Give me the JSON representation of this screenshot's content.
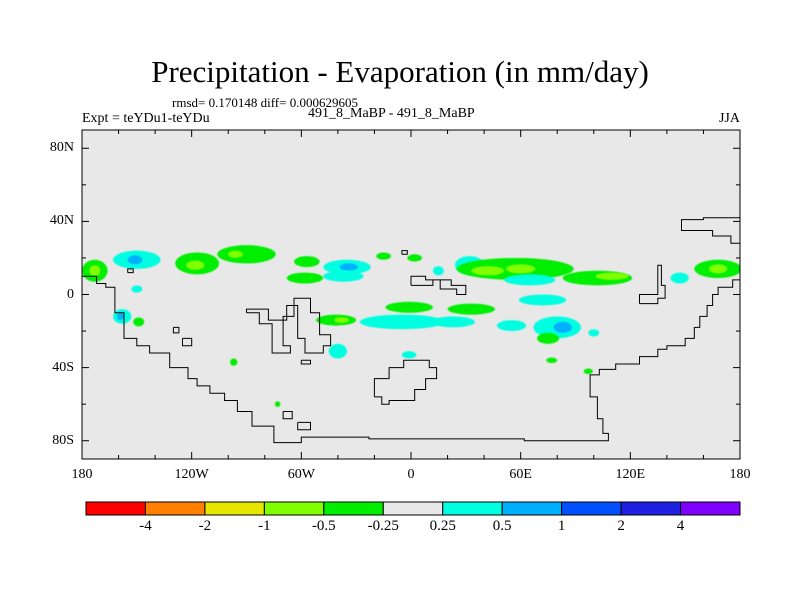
{
  "chart_data": {
    "type": "heatmap",
    "title": "Precipitation - Evaporation (in mm/day)",
    "subtitle": "rmsd= 0.170148 diff= 0.000629605",
    "left_label": "Expt = teYDu1-teYDu",
    "center_label": "491_8_MaBP - 491_8_MaBP",
    "right_label": "JJA",
    "units": "mm/day",
    "xlim": [
      -180,
      180
    ],
    "ylim": [
      -90,
      90
    ],
    "x_ticks": [
      {
        "value": -180,
        "label": "180"
      },
      {
        "value": -120,
        "label": "120W"
      },
      {
        "value": -60,
        "label": "60W"
      },
      {
        "value": 0,
        "label": "0"
      },
      {
        "value": 60,
        "label": "60E"
      },
      {
        "value": 120,
        "label": "120E"
      },
      {
        "value": 180,
        "label": "180"
      }
    ],
    "y_ticks": [
      {
        "value": 80,
        "label": "80N"
      },
      {
        "value": 40,
        "label": "40N"
      },
      {
        "value": 0,
        "label": "0"
      },
      {
        "value": -40,
        "label": "40S"
      },
      {
        "value": -80,
        "label": "80S"
      }
    ],
    "colorbar": {
      "levels": [
        "-4",
        "-2",
        "-1",
        "-0.5",
        "-0.25",
        "0.25",
        "0.5",
        "1",
        "2",
        "4"
      ],
      "colors": [
        "#ff0000",
        "#ff8000",
        "#e6e600",
        "#80ff00",
        "#00ee00",
        "#e8e8e8",
        "#00ffe0",
        "#00b0ff",
        "#0050ff",
        "#2020e0",
        "#8000ff"
      ]
    },
    "background_color": "#e8e8e8",
    "anomaly_regions": [
      {
        "lon": -173,
        "lat": 13,
        "rlon": 7,
        "rlat": 6,
        "class": 4
      },
      {
        "lon": -173,
        "lat": 13,
        "rlon": 3,
        "rlat": 3,
        "class": 3
      },
      {
        "lon": -150,
        "lat": 19,
        "rlon": 13,
        "rlat": 5,
        "class": 6
      },
      {
        "lon": -151,
        "lat": 19,
        "rlon": 4,
        "rlat": 2.5,
        "class": 7
      },
      {
        "lon": -117,
        "lat": 17,
        "rlon": 12,
        "rlat": 6,
        "class": 4
      },
      {
        "lon": -118,
        "lat": 16,
        "rlon": 5,
        "rlat": 2.5,
        "class": 3
      },
      {
        "lon": -90,
        "lat": 22,
        "rlon": 16,
        "rlat": 5,
        "class": 4
      },
      {
        "lon": -96,
        "lat": 22,
        "rlon": 4,
        "rlat": 2,
        "class": 3
      },
      {
        "lon": -57,
        "lat": 18,
        "rlon": 7,
        "rlat": 3,
        "class": 4
      },
      {
        "lon": -35,
        "lat": 15,
        "rlon": 13,
        "rlat": 4,
        "class": 6
      },
      {
        "lon": -34,
        "lat": 15,
        "rlon": 5,
        "rlat": 2,
        "class": 7
      },
      {
        "lon": -58,
        "lat": 9,
        "rlon": 10,
        "rlat": 3,
        "class": 4
      },
      {
        "lon": -37,
        "lat": 10,
        "rlon": 11,
        "rlat": 3,
        "class": 6
      },
      {
        "lon": -15,
        "lat": 21,
        "rlon": 4,
        "rlat": 2,
        "class": 4
      },
      {
        "lon": 2,
        "lat": 20,
        "rlon": 4,
        "rlat": 2,
        "class": 4
      },
      {
        "lon": 32,
        "lat": 16,
        "rlon": 8,
        "rlat": 5,
        "class": 6
      },
      {
        "lon": 57,
        "lat": 14,
        "rlon": 32,
        "rlat": 6,
        "class": 4
      },
      {
        "lon": 42,
        "lat": 13,
        "rlon": 9,
        "rlat": 2.5,
        "class": 3
      },
      {
        "lon": 60,
        "lat": 14,
        "rlon": 8,
        "rlat": 2.5,
        "class": 3
      },
      {
        "lon": 15,
        "lat": 13,
        "rlon": 3,
        "rlat": 2.5,
        "class": 6
      },
      {
        "lon": 65,
        "lat": 8,
        "rlon": 14,
        "rlat": 3,
        "class": 6
      },
      {
        "lon": 102,
        "lat": 9,
        "rlon": 19,
        "rlat": 4,
        "class": 4
      },
      {
        "lon": 110,
        "lat": 10,
        "rlon": 9,
        "rlat": 2,
        "class": 3
      },
      {
        "lon": 147,
        "lat": 9,
        "rlon": 5,
        "rlat": 3,
        "class": 6
      },
      {
        "lon": 168,
        "lat": 14,
        "rlon": 13,
        "rlat": 5,
        "class": 4
      },
      {
        "lon": 168,
        "lat": 14,
        "rlon": 5,
        "rlat": 2.5,
        "class": 3
      },
      {
        "lon": -150,
        "lat": 3,
        "rlon": 3,
        "rlat": 2,
        "class": 6
      },
      {
        "lon": -158,
        "lat": -12,
        "rlon": 5,
        "rlat": 4,
        "class": 6
      },
      {
        "lon": -159,
        "lat": -12,
        "rlon": 2,
        "rlat": 2,
        "class": 7
      },
      {
        "lon": -149,
        "lat": -15,
        "rlon": 3,
        "rlat": 2.5,
        "class": 4
      },
      {
        "lon": -41,
        "lat": -14,
        "rlon": 11,
        "rlat": 3,
        "class": 4
      },
      {
        "lon": -38,
        "lat": -14,
        "rlon": 4,
        "rlat": 1.5,
        "class": 3
      },
      {
        "lon": -1,
        "lat": -7,
        "rlon": 13,
        "rlat": 3,
        "class": 4
      },
      {
        "lon": 33,
        "lat": -8,
        "rlon": 13,
        "rlat": 3,
        "class": 4
      },
      {
        "lon": 72,
        "lat": -3,
        "rlon": 13,
        "rlat": 3,
        "class": 6
      },
      {
        "lon": -5,
        "lat": -15,
        "rlon": 23,
        "rlat": 4,
        "class": 6
      },
      {
        "lon": 23,
        "lat": -15,
        "rlon": 12,
        "rlat": 3,
        "class": 6
      },
      {
        "lon": 55,
        "lat": -17,
        "rlon": 8,
        "rlat": 3,
        "class": 6
      },
      {
        "lon": 80,
        "lat": -18,
        "rlon": 13,
        "rlat": 6,
        "class": 6
      },
      {
        "lon": 83,
        "lat": -18,
        "rlon": 5,
        "rlat": 3,
        "class": 7
      },
      {
        "lon": 75,
        "lat": -24,
        "rlon": 6,
        "rlat": 3,
        "class": 4
      },
      {
        "lon": 100,
        "lat": -21,
        "rlon": 3,
        "rlat": 2,
        "class": 6
      },
      {
        "lon": -40,
        "lat": -31,
        "rlon": 5,
        "rlat": 4,
        "class": 6
      },
      {
        "lon": -1,
        "lat": -33,
        "rlon": 4,
        "rlat": 2,
        "class": 6
      },
      {
        "lon": 77,
        "lat": -36,
        "rlon": 3,
        "rlat": 1.5,
        "class": 4
      },
      {
        "lon": -97,
        "lat": -37,
        "rlon": 2,
        "rlat": 2,
        "class": 4
      },
      {
        "lon": 97,
        "lat": -42,
        "rlon": 2.5,
        "rlat": 1.5,
        "class": 4
      },
      {
        "lon": -73,
        "lat": -60,
        "rlon": 1.5,
        "rlat": 1.5,
        "class": 4
      }
    ],
    "coastlines": [
      [
        [
          -180,
          10
        ],
        [
          -172,
          10
        ],
        [
          -172,
          6
        ],
        [
          -167,
          6
        ],
        [
          -167,
          4
        ],
        [
          -162,
          4
        ],
        [
          -162,
          -10
        ],
        [
          -157,
          -10
        ],
        [
          -157,
          -24
        ],
        [
          -150,
          -24
        ],
        [
          -150,
          -28
        ],
        [
          -143,
          -28
        ],
        [
          -143,
          -32
        ],
        [
          -132,
          -32
        ],
        [
          -132,
          -40
        ],
        [
          -122,
          -40
        ],
        [
          -122,
          -46
        ],
        [
          -117,
          -46
        ],
        [
          -117,
          -50
        ],
        [
          -110,
          -50
        ],
        [
          -110,
          -54
        ],
        [
          -102,
          -54
        ],
        [
          -102,
          -58
        ],
        [
          -95,
          -58
        ],
        [
          -95,
          -64
        ],
        [
          -87,
          -64
        ],
        [
          -87,
          -72
        ],
        [
          -75,
          -72
        ],
        [
          -75,
          -81
        ],
        [
          -60,
          -81
        ],
        [
          -60,
          -78
        ],
        [
          -23,
          -78
        ],
        [
          -23,
          -79
        ],
        [
          62,
          -79
        ],
        [
          62,
          -80
        ],
        [
          108,
          -80
        ],
        [
          108,
          -76
        ],
        [
          105,
          -76
        ],
        [
          105,
          -68
        ],
        [
          102,
          -68
        ],
        [
          102,
          -56
        ],
        [
          98,
          -56
        ],
        [
          98,
          -44
        ],
        [
          103,
          -44
        ],
        [
          103,
          -41
        ],
        [
          112,
          -41
        ],
        [
          112,
          -38
        ],
        [
          125,
          -38
        ],
        [
          125,
          -34
        ],
        [
          135,
          -34
        ],
        [
          135,
          -30
        ],
        [
          140,
          -30
        ],
        [
          140,
          -28
        ],
        [
          150,
          -28
        ],
        [
          150,
          -24
        ],
        [
          155,
          -24
        ],
        [
          155,
          -18
        ],
        [
          158,
          -18
        ],
        [
          158,
          -12
        ],
        [
          162,
          -12
        ],
        [
          162,
          -6
        ],
        [
          165,
          -6
        ],
        [
          165,
          0
        ],
        [
          168,
          0
        ],
        [
          168,
          4
        ],
        [
          176,
          4
        ],
        [
          176,
          8
        ],
        [
          180,
          8
        ]
      ],
      [
        [
          180,
          28
        ],
        [
          175,
          28
        ],
        [
          175,
          32
        ],
        [
          165,
          32
        ],
        [
          165,
          35
        ],
        [
          148,
          35
        ],
        [
          148,
          41
        ],
        [
          160,
          41
        ],
        [
          160,
          42
        ],
        [
          180,
          42
        ]
      ],
      [
        [
          125,
          -5
        ],
        [
          125,
          0
        ],
        [
          135,
          0
        ],
        [
          135,
          16
        ],
        [
          137,
          16
        ],
        [
          137,
          5
        ],
        [
          139,
          5
        ],
        [
          139,
          -2
        ],
        [
          135,
          -2
        ],
        [
          135,
          -5
        ],
        [
          125,
          -5
        ]
      ],
      [
        [
          -155,
          12
        ],
        [
          -152,
          12
        ],
        [
          -152,
          14
        ],
        [
          -155,
          14
        ],
        [
          -155,
          12
        ]
      ],
      [
        [
          0,
          5
        ],
        [
          12,
          5
        ],
        [
          12,
          8
        ],
        [
          16,
          8
        ],
        [
          16,
          3
        ],
        [
          25,
          3
        ],
        [
          25,
          0
        ],
        [
          30,
          0
        ],
        [
          30,
          5
        ],
        [
          22,
          5
        ],
        [
          22,
          8
        ],
        [
          8,
          8
        ],
        [
          8,
          10
        ],
        [
          0,
          10
        ],
        [
          0,
          5
        ]
      ],
      [
        [
          -90,
          -10
        ],
        [
          -83,
          -10
        ],
        [
          -83,
          -16
        ],
        [
          -76,
          -16
        ],
        [
          -76,
          -32
        ],
        [
          -66,
          -32
        ],
        [
          -66,
          -28
        ],
        [
          -70,
          -28
        ],
        [
          -70,
          -12
        ],
        [
          -64,
          -12
        ],
        [
          -64,
          -2
        ],
        [
          -55,
          -2
        ],
        [
          -55,
          -10
        ],
        [
          -50,
          -10
        ],
        [
          -50,
          -22
        ],
        [
          -44,
          -22
        ],
        [
          -44,
          -28
        ],
        [
          -48,
          -28
        ],
        [
          -48,
          -32
        ],
        [
          -58,
          -32
        ],
        [
          -58,
          -24
        ],
        [
          -62,
          -24
        ],
        [
          -62,
          -6
        ],
        [
          -68,
          -6
        ],
        [
          -68,
          -14
        ],
        [
          -78,
          -14
        ],
        [
          -78,
          -8
        ],
        [
          -90,
          -8
        ],
        [
          -90,
          -10
        ]
      ],
      [
        [
          -130,
          -18
        ],
        [
          -127,
          -18
        ],
        [
          -127,
          -21
        ],
        [
          -130,
          -21
        ],
        [
          -130,
          -18
        ]
      ],
      [
        [
          -125,
          -24
        ],
        [
          -120,
          -24
        ],
        [
          -120,
          -28
        ],
        [
          -125,
          -28
        ],
        [
          -125,
          -24
        ]
      ],
      [
        [
          -60,
          -36
        ],
        [
          -55,
          -36
        ],
        [
          -55,
          -38
        ],
        [
          -60,
          -38
        ],
        [
          -60,
          -36
        ]
      ],
      [
        [
          -20,
          -56
        ],
        [
          -20,
          -46
        ],
        [
          -12,
          -46
        ],
        [
          -12,
          -40
        ],
        [
          -4,
          -40
        ],
        [
          -4,
          -36
        ],
        [
          10,
          -36
        ],
        [
          10,
          -40
        ],
        [
          14,
          -40
        ],
        [
          14,
          -46
        ],
        [
          8,
          -46
        ],
        [
          8,
          -52
        ],
        [
          2,
          -52
        ],
        [
          2,
          -58
        ],
        [
          -12,
          -58
        ],
        [
          -12,
          -60
        ],
        [
          -16,
          -60
        ],
        [
          -16,
          -56
        ],
        [
          -20,
          -56
        ]
      ],
      [
        [
          -70,
          -64
        ],
        [
          -65,
          -64
        ],
        [
          -65,
          -68
        ],
        [
          -70,
          -68
        ],
        [
          -70,
          -64
        ]
      ],
      [
        [
          -62,
          -70
        ],
        [
          -55,
          -70
        ],
        [
          -55,
          -74
        ],
        [
          -62,
          -74
        ],
        [
          -62,
          -70
        ]
      ],
      [
        [
          -5,
          22
        ],
        [
          -2,
          22
        ],
        [
          -2,
          24
        ],
        [
          -5,
          24
        ],
        [
          -5,
          22
        ]
      ]
    ]
  }
}
